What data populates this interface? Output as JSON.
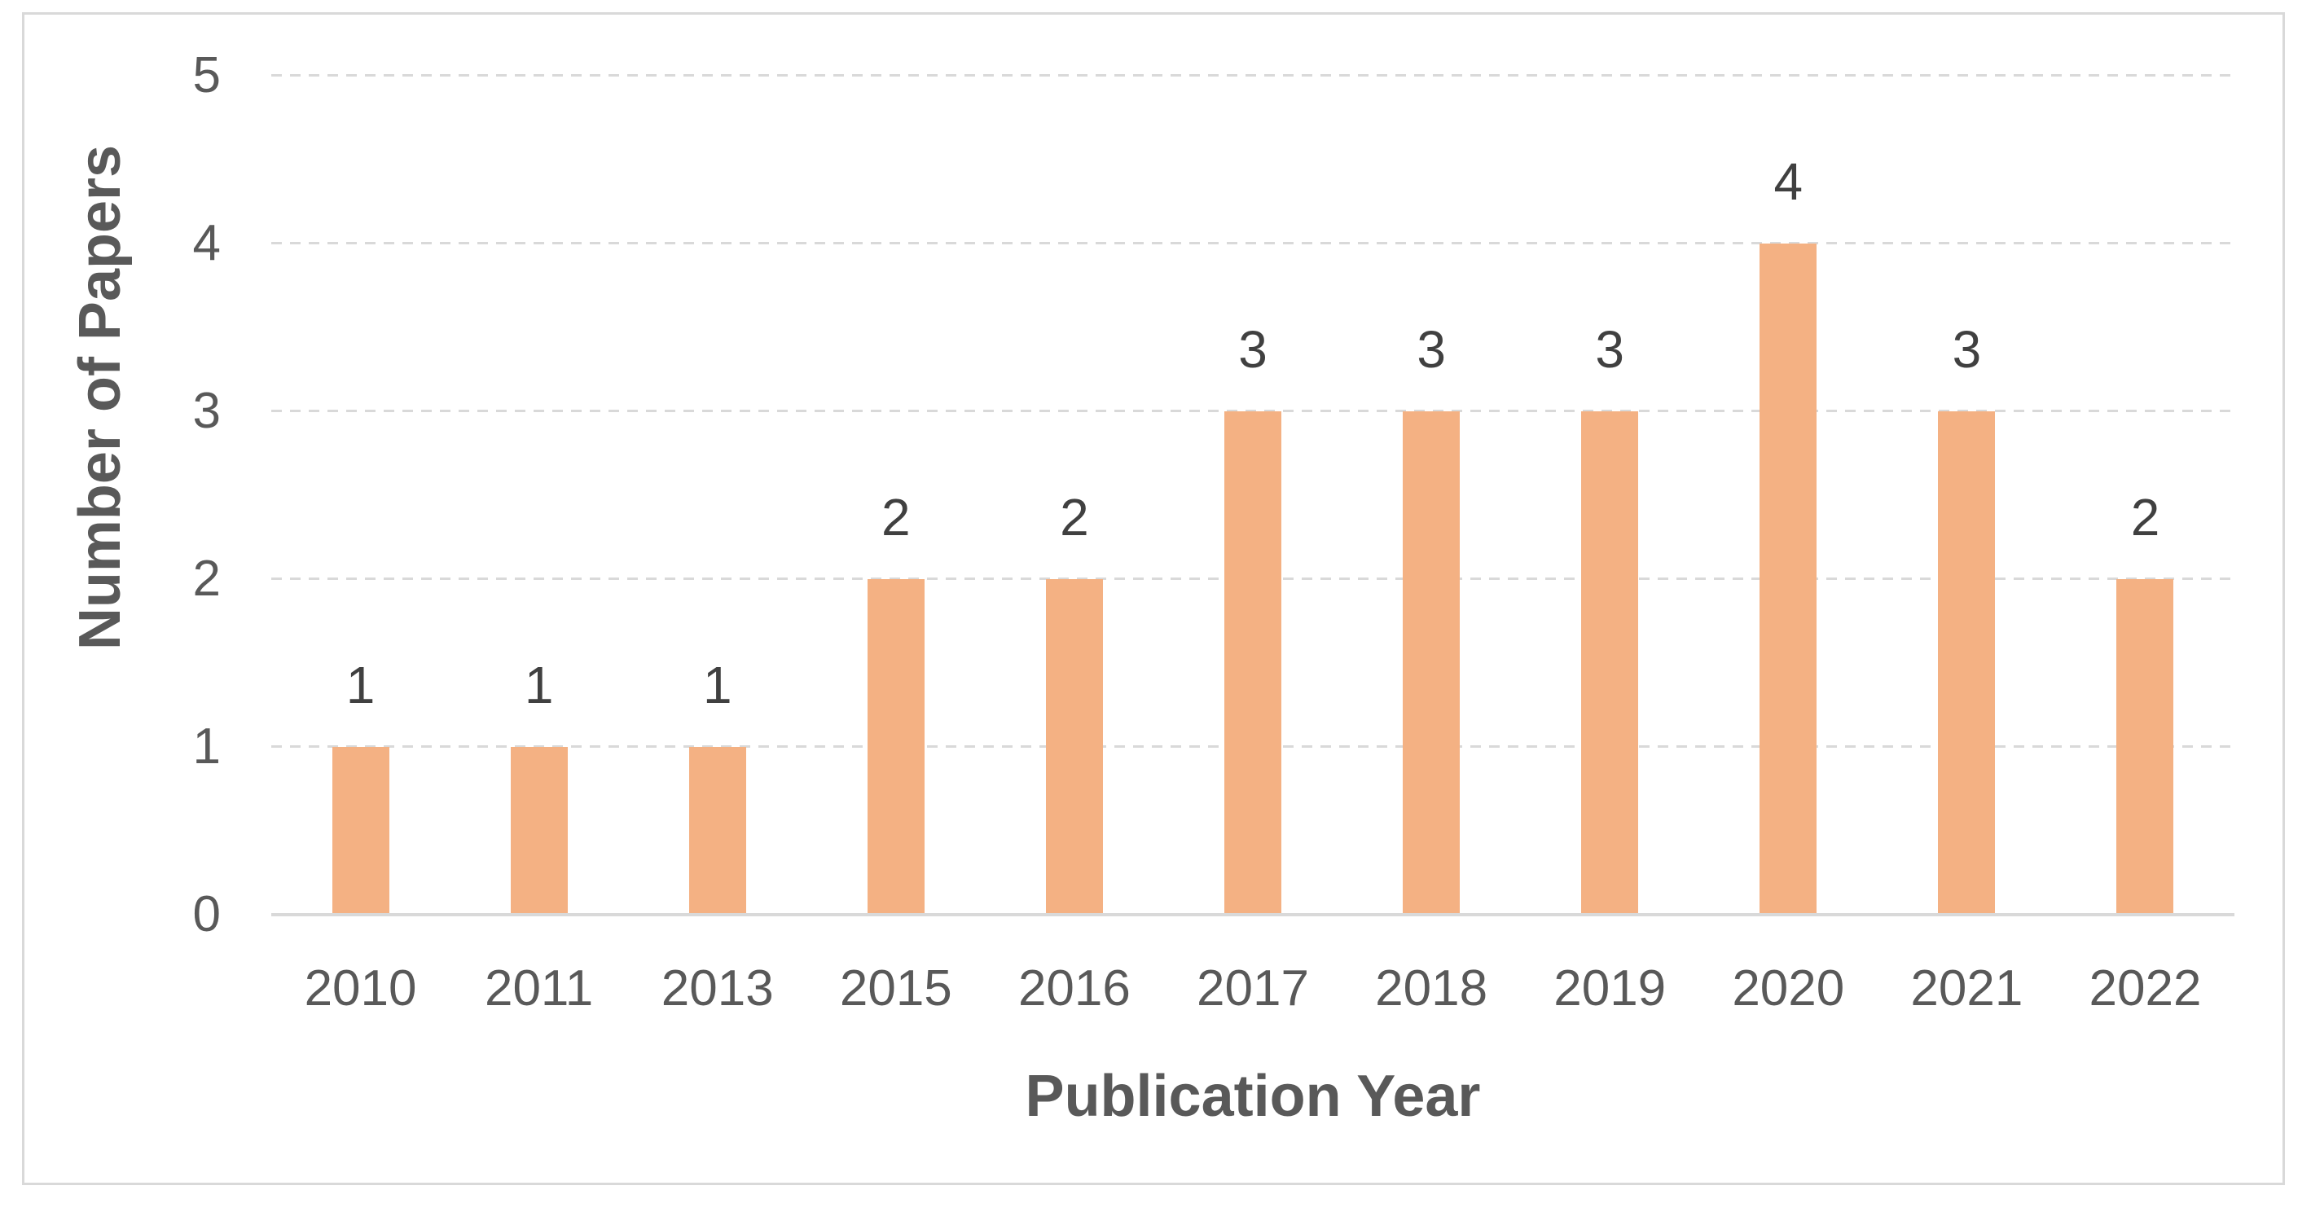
{
  "chart_data": {
    "type": "bar",
    "title": "",
    "xlabel": "Publication Year",
    "ylabel": "Number of Papers",
    "categories": [
      "2010",
      "2011",
      "2013",
      "2015",
      "2016",
      "2017",
      "2018",
      "2019",
      "2020",
      "2021",
      "2022"
    ],
    "values": [
      1,
      1,
      1,
      2,
      2,
      3,
      3,
      3,
      4,
      3,
      2
    ],
    "ylim": [
      0,
      5
    ],
    "yticks": [
      0,
      1,
      2,
      3,
      4,
      5
    ],
    "grid": "horizontal-dashed",
    "legend": "none",
    "data_labels": true,
    "colors": {
      "bar": "#F4B183",
      "data_label": "#404040",
      "axis_text": "#595959",
      "axis_title": "#595959",
      "gridline": "#D9D9D9",
      "axis_line": "#D9D9D9",
      "frame_border": "#D9D9D9",
      "background": "#FFFFFF"
    }
  }
}
